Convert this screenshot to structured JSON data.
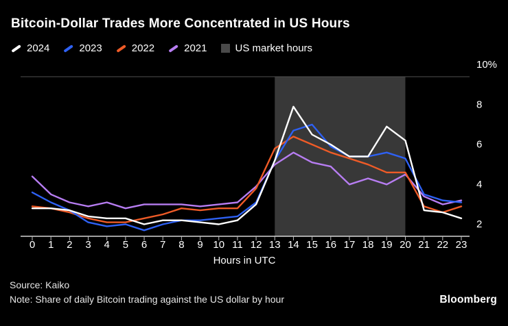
{
  "title": "Bitcoin-Dollar Trades More Concentrated in US Hours",
  "legend": {
    "items": [
      {
        "label": "2024",
        "color": "#ffffff",
        "type": "line"
      },
      {
        "label": "2023",
        "color": "#2e61f4",
        "type": "line"
      },
      {
        "label": "2022",
        "color": "#ef5b27",
        "type": "line"
      },
      {
        "label": "2021",
        "color": "#b77df2",
        "type": "line"
      },
      {
        "label": "US market hours",
        "color": "#4a4a4a",
        "type": "box"
      }
    ]
  },
  "chart_data": {
    "type": "line",
    "title": "Bitcoin-Dollar Trades More Concentrated in US Hours",
    "x": [
      0,
      1,
      2,
      3,
      4,
      5,
      6,
      7,
      8,
      9,
      10,
      11,
      12,
      13,
      14,
      15,
      16,
      17,
      18,
      19,
      20,
      21,
      22,
      23
    ],
    "series": [
      {
        "name": "2024",
        "color": "#ffffff",
        "values": [
          3.4,
          3.4,
          3.3,
          3.0,
          2.9,
          2.9,
          2.6,
          2.8,
          2.8,
          2.7,
          2.6,
          2.8,
          3.6,
          5.8,
          8.5,
          7.1,
          6.6,
          6.0,
          6.0,
          7.5,
          6.8,
          3.3,
          3.2,
          2.9
        ]
      },
      {
        "name": "2023",
        "color": "#2e61f4",
        "values": [
          4.2,
          3.7,
          3.3,
          2.7,
          2.5,
          2.6,
          2.3,
          2.6,
          2.8,
          2.8,
          2.9,
          3.0,
          3.7,
          5.8,
          7.3,
          7.6,
          6.5,
          6.0,
          6.0,
          6.2,
          5.9,
          4.1,
          3.8,
          3.7
        ]
      },
      {
        "name": "2022",
        "color": "#ef5b27",
        "values": [
          3.5,
          3.4,
          3.2,
          2.9,
          2.7,
          2.7,
          2.9,
          3.1,
          3.4,
          3.3,
          3.4,
          3.4,
          4.4,
          6.4,
          7.0,
          6.6,
          6.2,
          5.9,
          5.6,
          5.2,
          5.2,
          3.5,
          3.2,
          3.5
        ]
      },
      {
        "name": "2021",
        "color": "#b77df2",
        "values": [
          5.0,
          4.1,
          3.7,
          3.5,
          3.7,
          3.4,
          3.6,
          3.6,
          3.6,
          3.5,
          3.6,
          3.7,
          4.5,
          5.6,
          6.2,
          5.7,
          5.5,
          4.6,
          4.9,
          4.6,
          5.1,
          4.0,
          3.6,
          3.8
        ]
      }
    ],
    "xlabel": "Hours in UTC",
    "ylabel": "",
    "ylim": [
      2,
      10
    ],
    "yticks": [
      2,
      4,
      6,
      8,
      10
    ],
    "ytick_labels": [
      "2",
      "4",
      "6",
      "8",
      "10%"
    ],
    "band": {
      "label": "US market hours",
      "x_start": 13,
      "x_end": 20,
      "color": "#383838"
    },
    "grid": "top-line-only",
    "legend_position": "top-left"
  },
  "footer": {
    "source": "Source: Kaiko",
    "note": "Note: Share of daily Bitcoin trading against the US dollar by hour",
    "brand": "Bloomberg"
  }
}
